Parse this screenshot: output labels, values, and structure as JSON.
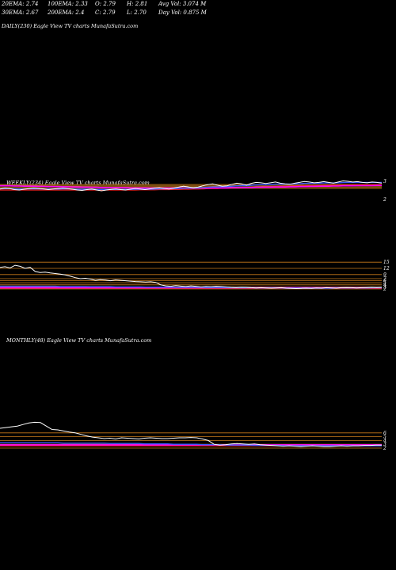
{
  "header": {
    "row1": [
      "20EMA: 2.74",
      "100EMA: 2.33",
      "O: 2.79",
      "H: 2.81",
      "Avg Vol: 3.074  M"
    ],
    "row2": [
      "30EMA: 2.67",
      "200EMA: 2.4",
      "C: 2.79",
      "L: 2.70",
      "Day Vol: 0.875 M"
    ]
  },
  "panels": {
    "daily": "DAILY(230) Eagle  View  TV charts MunafaSutra.com",
    "weekly": "WEEKLY(234) Eagle  View  TV charts MunafaSutra.com",
    "monthly": "MONTHLY(48) Eagle  View  TV charts MunafaSutra.com"
  },
  "colors": {
    "background": "#000000",
    "price": "#ffffff",
    "ema_blue": "#3b5bff",
    "ema_magenta": "#ff00ff",
    "ema_red": "#ff2020",
    "grid_orange": "#c87a1a"
  },
  "chart_data": [
    {
      "type": "line",
      "title": "WEEKLY(234) Eagle  View  TV charts MunafaSutra.com",
      "tick_labels": [
        "3",
        "2"
      ],
      "price": [
        2.55,
        2.6,
        2.58,
        2.52,
        2.5,
        2.54,
        2.57,
        2.6,
        2.58,
        2.56,
        2.52,
        2.55,
        2.58,
        2.6,
        2.57,
        2.54,
        2.5,
        2.48,
        2.52,
        2.55,
        2.5,
        2.46,
        2.5,
        2.53,
        2.55,
        2.52,
        2.5,
        2.54,
        2.58,
        2.55,
        2.52,
        2.56,
        2.6,
        2.62,
        2.58,
        2.55,
        2.6,
        2.65,
        2.7,
        2.66,
        2.62,
        2.65,
        2.72,
        2.78,
        2.82,
        2.75,
        2.7,
        2.72,
        2.8,
        2.86,
        2.82,
        2.76,
        2.85,
        2.9,
        2.88,
        2.84,
        2.88,
        2.92,
        2.86,
        2.82,
        2.8,
        2.86,
        2.9,
        2.95,
        2.92,
        2.88,
        2.9,
        2.94,
        2.9,
        2.86,
        2.92,
        2.98,
        2.96,
        2.92,
        2.94,
        2.9,
        2.88,
        2.92,
        2.9,
        2.86
      ],
      "ema_blue": [
        2.56,
        2.57,
        2.57,
        2.56,
        2.55,
        2.55,
        2.56,
        2.56,
        2.56,
        2.55,
        2.55,
        2.55,
        2.55,
        2.56,
        2.56,
        2.55,
        2.54,
        2.54,
        2.54,
        2.54,
        2.53,
        2.53,
        2.53,
        2.53,
        2.53,
        2.53,
        2.53,
        2.53,
        2.54,
        2.54,
        2.54,
        2.54,
        2.55,
        2.56,
        2.56,
        2.56,
        2.57,
        2.58,
        2.59,
        2.6,
        2.6,
        2.61,
        2.62,
        2.64,
        2.66,
        2.66,
        2.67,
        2.68,
        2.7,
        2.72,
        2.73,
        2.73,
        2.75,
        2.77,
        2.78,
        2.78,
        2.79,
        2.81,
        2.81,
        2.81,
        2.81,
        2.82,
        2.83,
        2.85,
        2.85,
        2.86,
        2.86,
        2.87,
        2.87,
        2.87,
        2.88,
        2.89,
        2.9,
        2.9,
        2.9,
        2.9,
        2.9,
        2.9,
        2.9,
        2.9
      ],
      "ema_magenta": [
        2.72,
        2.72,
        2.72,
        2.71,
        2.71,
        2.7,
        2.7,
        2.7,
        2.69,
        2.69,
        2.68,
        2.68,
        2.68,
        2.67,
        2.67,
        2.66,
        2.66,
        2.65,
        2.65,
        2.64,
        2.64,
        2.63,
        2.63,
        2.63,
        2.62,
        2.62,
        2.62,
        2.61,
        2.61,
        2.61,
        2.61,
        2.6,
        2.6,
        2.6,
        2.6,
        2.6,
        2.6,
        2.6,
        2.6,
        2.6,
        2.6,
        2.6,
        2.6,
        2.6,
        2.61,
        2.61,
        2.61,
        2.61,
        2.62,
        2.62,
        2.63,
        2.63,
        2.63,
        2.64,
        2.64,
        2.65,
        2.65,
        2.66,
        2.66,
        2.66,
        2.67,
        2.67,
        2.68,
        2.68,
        2.69,
        2.69,
        2.7,
        2.7,
        2.7,
        2.71,
        2.71,
        2.72,
        2.72,
        2.72,
        2.73,
        2.73,
        2.73,
        2.73,
        2.74,
        2.74
      ],
      "ema_red": [
        2.5,
        2.5,
        2.5,
        2.5,
        2.5,
        2.5,
        2.5,
        2.5,
        2.5,
        2.5,
        2.5,
        2.5,
        2.5,
        2.5,
        2.5,
        2.5,
        2.5,
        2.5,
        2.5,
        2.5,
        2.5,
        2.5,
        2.5,
        2.5,
        2.5,
        2.5,
        2.5,
        2.5,
        2.5,
        2.51,
        2.51,
        2.51,
        2.51,
        2.52,
        2.52,
        2.52,
        2.53,
        2.53,
        2.54,
        2.54,
        2.55,
        2.55,
        2.56,
        2.57,
        2.58,
        2.58,
        2.59,
        2.6,
        2.61,
        2.62,
        2.63,
        2.63,
        2.64,
        2.65,
        2.66,
        2.67,
        2.67,
        2.68,
        2.69,
        2.69,
        2.7,
        2.71,
        2.71,
        2.72,
        2.72,
        2.73,
        2.73,
        2.74,
        2.74,
        2.75,
        2.75,
        2.76,
        2.76,
        2.76,
        2.77,
        2.77,
        2.77,
        2.78,
        2.78,
        2.78
      ]
    },
    {
      "type": "line",
      "title": "",
      "tick_labels": [
        "15",
        "12",
        "9",
        "7",
        "6",
        "5",
        "4",
        "3",
        "2"
      ],
      "price": [
        12.5,
        12.8,
        12.2,
        13.5,
        13,
        12,
        12.5,
        10.5,
        10,
        10.2,
        9.8,
        9.5,
        9.2,
        8.8,
        8.2,
        7.5,
        7,
        7.2,
        6.8,
        6.2,
        6.5,
        6.3,
        6,
        6.4,
        6.2,
        6,
        5.8,
        5.6,
        5.5,
        5.4,
        5.5,
        5.2,
        4,
        3.5,
        3.3,
        3.6,
        3.4,
        3.2,
        3.5,
        3.3,
        3,
        3.2,
        3.1,
        3.3,
        3.2,
        3,
        2.8,
        2.7,
        2.9,
        2.8,
        2.6,
        2.5,
        2.6,
        2.5,
        2.4,
        2.5,
        2.6,
        2.4,
        2.3,
        2.2,
        2.3,
        2.4,
        2.3,
        2.5,
        2.4,
        2.6,
        2.5,
        2.4,
        2.6,
        2.7,
        2.6,
        2.5,
        2.6,
        2.7,
        2.8,
        2.7,
        2.8
      ],
      "ema_blue": [
        3.3,
        3.3,
        3.3,
        3.3,
        3.3,
        3.3,
        3.3,
        3.3,
        3.3,
        3.3,
        3.3,
        3.3,
        3.2,
        3.2,
        3.2,
        3.2,
        3.2,
        3.2,
        3.1,
        3.1,
        3.1,
        3.1,
        3.1,
        3,
        3,
        3,
        3,
        3,
        3,
        2.9,
        2.9,
        2.9,
        2.9,
        2.9,
        2.9,
        2.8,
        2.8,
        2.8,
        2.8,
        2.8,
        2.8,
        2.7,
        2.7,
        2.7,
        2.7,
        2.7,
        2.6,
        2.6,
        2.6,
        2.6,
        2.6,
        2.5,
        2.5,
        2.5,
        2.5,
        2.5,
        2.5,
        2.4,
        2.4,
        2.4,
        2.4,
        2.4,
        2.4,
        2.4,
        2.4,
        2.4,
        2.4,
        2.5,
        2.5,
        2.5,
        2.5,
        2.5,
        2.5,
        2.5,
        2.6,
        2.6,
        2.6
      ],
      "ema_magenta": [
        2.6,
        2.6,
        2.6,
        2.6,
        2.6,
        2.6,
        2.6,
        2.6,
        2.6,
        2.6,
        2.6,
        2.6,
        2.6,
        2.6,
        2.6,
        2.6,
        2.6,
        2.6,
        2.6,
        2.6,
        2.6,
        2.6,
        2.6,
        2.6,
        2.6,
        2.6,
        2.6,
        2.6,
        2.6,
        2.6,
        2.6,
        2.6,
        2.6,
        2.6,
        2.6,
        2.6,
        2.6,
        2.6,
        2.6,
        2.6,
        2.6,
        2.6,
        2.6,
        2.6,
        2.6,
        2.6,
        2.6,
        2.6,
        2.6,
        2.6,
        2.6,
        2.6,
        2.6,
        2.6,
        2.6,
        2.6,
        2.6,
        2.6,
        2.6,
        2.6,
        2.6,
        2.6,
        2.6,
        2.6,
        2.6,
        2.6,
        2.6,
        2.6,
        2.6,
        2.6,
        2.6,
        2.6,
        2.6,
        2.6,
        2.6,
        2.6,
        2.6
      ],
      "ema_red": [
        2.3,
        2.3,
        2.3,
        2.3,
        2.3,
        2.3,
        2.3,
        2.3,
        2.3,
        2.3,
        2.3,
        2.3,
        2.3,
        2.3,
        2.3,
        2.3,
        2.3,
        2.3,
        2.3,
        2.3,
        2.3,
        2.3,
        2.3,
        2.3,
        2.3,
        2.3,
        2.3,
        2.3,
        2.3,
        2.3,
        2.3,
        2.3,
        2.3,
        2.3,
        2.3,
        2.3,
        2.3,
        2.3,
        2.3,
        2.3,
        2.3,
        2.3,
        2.3,
        2.3,
        2.3,
        2.3,
        2.3,
        2.3,
        2.3,
        2.3,
        2.3,
        2.3,
        2.3,
        2.3,
        2.3,
        2.3,
        2.3,
        2.3,
        2.3,
        2.3,
        2.3,
        2.3,
        2.3,
        2.3,
        2.3,
        2.3,
        2.3,
        2.3,
        2.3,
        2.3,
        2.3,
        2.3,
        2.3,
        2.3,
        2.3,
        2.3,
        2.3
      ],
      "levels": [
        15,
        12,
        9,
        7,
        6,
        5,
        4,
        3,
        2
      ]
    },
    {
      "type": "line",
      "title": "MONTHLY(48) Eagle  View  TV charts MunafaSutra.com",
      "tick_labels": [
        "6",
        "5",
        "4",
        "3",
        "2"
      ],
      "price": [
        7.2,
        7.4,
        7.6,
        7.8,
        8.2,
        8.6,
        8.8,
        8.7,
        7.8,
        6.9,
        6.8,
        6.5,
        6.2,
        6,
        5.6,
        5.2,
        4.9,
        4.7,
        4.5,
        4.6,
        4.4,
        4.7,
        4.6,
        4.5,
        4.4,
        4.6,
        4.7,
        4.6,
        4.5,
        4.5,
        4.6,
        4.7,
        4.7,
        4.8,
        4.7,
        4.4,
        4,
        3,
        2.8,
        2.9,
        3.1,
        3.2,
        3.1,
        3,
        3.1,
        2.9,
        2.8,
        2.7,
        2.6,
        2.5,
        2.6,
        2.5,
        2.4,
        2.5,
        2.6,
        2.5,
        2.4,
        2.4,
        2.5,
        2.6,
        2.5,
        2.6,
        2.6,
        2.7,
        2.7,
        2.8,
        2.8
      ],
      "ema_blue": [
        3.4,
        3.4,
        3.4,
        3.4,
        3.4,
        3.4,
        3.4,
        3.4,
        3.4,
        3.4,
        3.4,
        3.3,
        3.3,
        3.3,
        3.3,
        3.3,
        3.3,
        3.3,
        3.3,
        3.2,
        3.2,
        3.2,
        3.2,
        3.2,
        3.2,
        3.1,
        3.1,
        3.1,
        3.1,
        3.1,
        3,
        3,
        3,
        3,
        3,
        2.9,
        2.9,
        2.9,
        2.9,
        2.8,
        2.8,
        2.8,
        2.8,
        2.8,
        2.7,
        2.7,
        2.7,
        2.7,
        2.7,
        2.6,
        2.6,
        2.6,
        2.6,
        2.6,
        2.6,
        2.6,
        2.6,
        2.6,
        2.6,
        2.6,
        2.6,
        2.6,
        2.6,
        2.6,
        2.6,
        2.6,
        2.6
      ],
      "ema_magenta": [
        2.85,
        2.85,
        2.85,
        2.85,
        2.85,
        2.85,
        2.85,
        2.85,
        2.85,
        2.85,
        2.85,
        2.85,
        2.85,
        2.85,
        2.85,
        2.85,
        2.85,
        2.85,
        2.85,
        2.85,
        2.85,
        2.85,
        2.85,
        2.85,
        2.85,
        2.85,
        2.85,
        2.85,
        2.85,
        2.85,
        2.85,
        2.85,
        2.85,
        2.85,
        2.85,
        2.85,
        2.85,
        2.85,
        2.85,
        2.85,
        2.85,
        2.85,
        2.85,
        2.85,
        2.85,
        2.85,
        2.85,
        2.85,
        2.85,
        2.85,
        2.85,
        2.85,
        2.85,
        2.85,
        2.85,
        2.85,
        2.85,
        2.85,
        2.85,
        2.85,
        2.85,
        2.85,
        2.85,
        2.85,
        2.85,
        2.85,
        2.85
      ],
      "ema_red": [
        2.6,
        2.6,
        2.6,
        2.6,
        2.6,
        2.6,
        2.6,
        2.6,
        2.6,
        2.6,
        2.6,
        2.6,
        2.6,
        2.6,
        2.6,
        2.6,
        2.6,
        2.6,
        2.6,
        2.6,
        2.6,
        2.6,
        2.6,
        2.6,
        2.6,
        2.6,
        2.6,
        2.6,
        2.6,
        2.6,
        2.6,
        2.6,
        2.6,
        2.6,
        2.6,
        2.6,
        2.6,
        2.6,
        2.6,
        2.6,
        2.6,
        2.6,
        2.6,
        2.6,
        2.6,
        2.6,
        2.6,
        2.6,
        2.6,
        2.6,
        2.6,
        2.6,
        2.6,
        2.6,
        2.6,
        2.6,
        2.6,
        2.6,
        2.6,
        2.6,
        2.6,
        2.6,
        2.6,
        2.6,
        2.6,
        2.6,
        2.6
      ],
      "levels": [
        6,
        5,
        4,
        3,
        2
      ]
    }
  ]
}
